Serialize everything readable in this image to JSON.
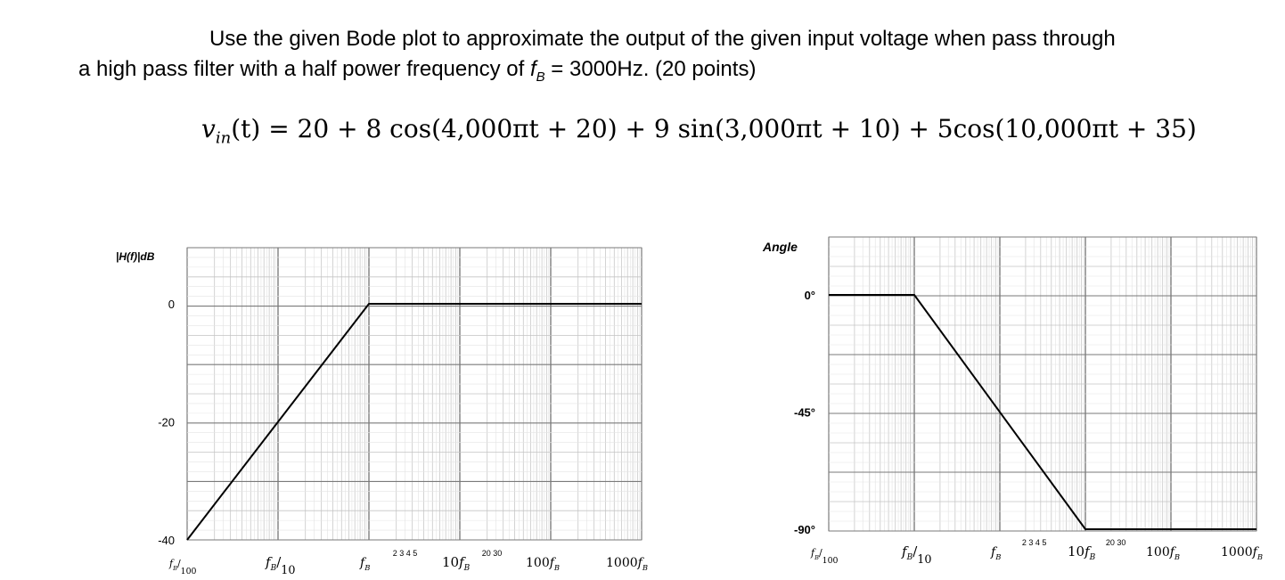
{
  "problem": {
    "line1": "Use the given Bode plot to approximate the output of the given input voltage when pass through",
    "line2_before": "a high pass filter with a half power frequency of ",
    "line2_symbol": "f",
    "line2_sub": "B",
    "line2_after": " = 3000Hz. (20 points)",
    "equation_lhs": "v",
    "equation_lhs_sub": "in",
    "equation_rhs": "(t) = 20 + 8 cos(4,000πt + 20) + 9 sin(3,000πt + 10) + 5cos(10,000πt + 35)"
  },
  "chart_data": [
    {
      "type": "line",
      "ylabel": "|H(f)|dB",
      "x_tick_labels": [
        "fB/100",
        "fB/10",
        "fB",
        "10fB",
        "100fB",
        "1000fB"
      ],
      "x_minor_labels": [
        "2 3 4 5",
        "20 30"
      ],
      "x_scale": "log",
      "x_unit": "multiples of fB",
      "y_ticks": [
        0,
        -20,
        -40
      ],
      "ylim": [
        -40,
        0
      ],
      "grid": true,
      "series": [
        {
          "x": [
            0.01,
            1,
            1000
          ],
          "y": [
            -40,
            0,
            0
          ]
        }
      ]
    },
    {
      "type": "line",
      "ylabel": "Angle",
      "x_tick_labels": [
        "fB/100",
        "fB/10",
        "fB",
        "10fB",
        "100fB",
        "1000fB"
      ],
      "x_minor_labels": [
        "2 3 4 5",
        "20 30"
      ],
      "x_scale": "log",
      "x_unit": "multiples of fB",
      "y_tick_labels": [
        "0°",
        "-45°",
        "-90°"
      ],
      "y_ticks": [
        0,
        -45,
        -90
      ],
      "ylim": [
        -90,
        0
      ],
      "grid": true,
      "series": [
        {
          "x": [
            0.01,
            0.1,
            10,
            1000
          ],
          "y": [
            0,
            0,
            -90,
            -90
          ]
        }
      ]
    }
  ]
}
